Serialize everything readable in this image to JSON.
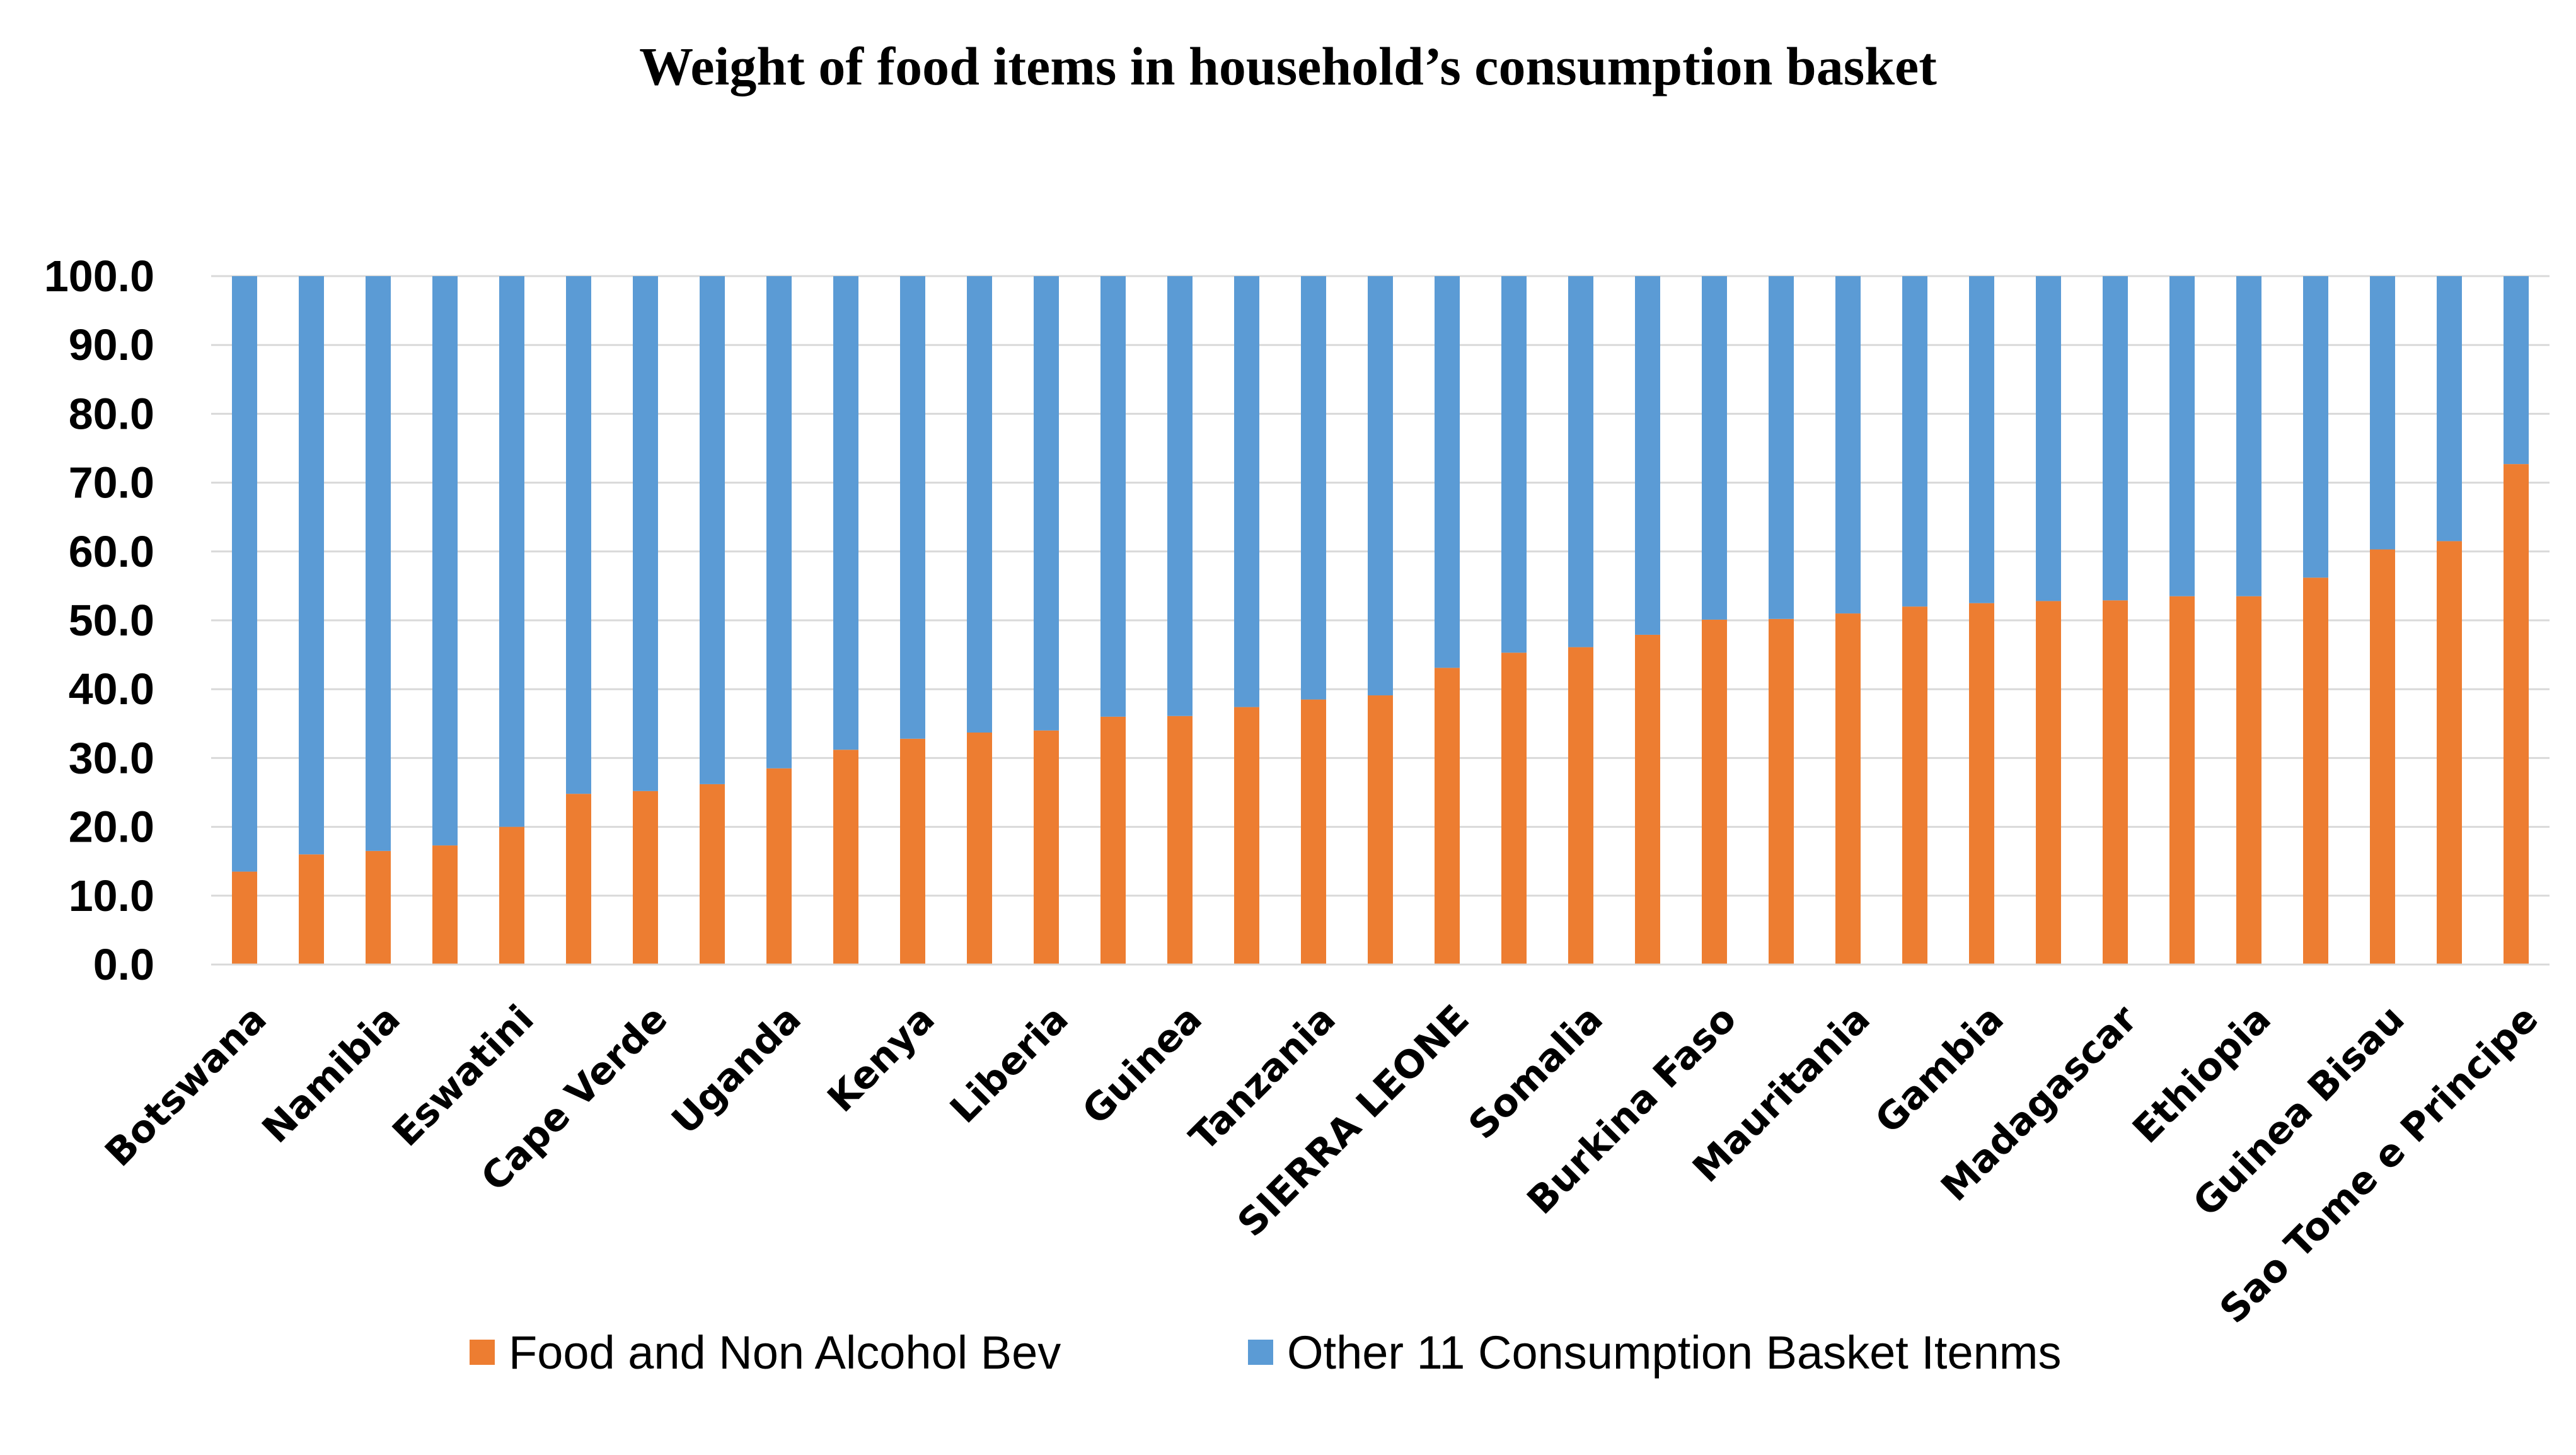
{
  "chart_data": {
    "type": "bar",
    "stacked": true,
    "title": "Weight of food items in household’s consumption basket",
    "xlabel": "",
    "ylabel": "",
    "ylim": [
      0,
      100
    ],
    "yticks": [
      "0.0",
      "10.0",
      "20.0",
      "30.0",
      "40.0",
      "50.0",
      "60.0",
      "70.0",
      "80.0",
      "90.0",
      "100.0"
    ],
    "grid": true,
    "legend_position": "bottom",
    "categories": [
      "Botswana",
      "",
      "Namibia",
      "",
      "Eswatini",
      "",
      "Cape Verde",
      "",
      "Uganda",
      "",
      "Kenya",
      "",
      "Liberia",
      "",
      "Guinea",
      "",
      "Tanzania",
      "",
      "SIERRA LEONE",
      "",
      "Somalia",
      "",
      "Burkina Faso",
      "",
      "Mauritania",
      "",
      "Gambia",
      "",
      "Madagascar",
      "",
      "Ethiopia",
      "",
      "Guinea Bisau",
      "",
      "Sao Tome e Principe"
    ],
    "series": [
      {
        "name": "Food and Non Alcohol Bev",
        "color": "#ED7D31",
        "values": [
          13.5,
          16.0,
          16.5,
          17.3,
          20.0,
          24.8,
          25.2,
          26.2,
          28.5,
          31.2,
          32.8,
          33.7,
          34.0,
          36.0,
          36.1,
          37.4,
          38.5,
          39.1,
          43.1,
          45.3,
          46.1,
          47.9,
          50.1,
          50.2,
          51.0,
          52.0,
          52.5,
          52.8,
          52.9,
          53.5,
          53.5,
          56.2,
          60.3,
          61.5,
          72.7
        ]
      },
      {
        "name": "Other 11 Consumption Basket Itenms",
        "color": "#5B9BD5",
        "values": [
          86.5,
          84.0,
          83.5,
          82.7,
          80.0,
          75.2,
          74.8,
          73.8,
          71.5,
          68.8,
          67.2,
          66.3,
          66.0,
          64.0,
          63.9,
          62.6,
          61.5,
          60.9,
          56.9,
          54.7,
          53.9,
          52.1,
          49.9,
          49.8,
          49.0,
          48.0,
          47.5,
          47.2,
          47.1,
          46.5,
          46.5,
          43.8,
          39.7,
          38.5,
          27.3
        ]
      }
    ]
  }
}
